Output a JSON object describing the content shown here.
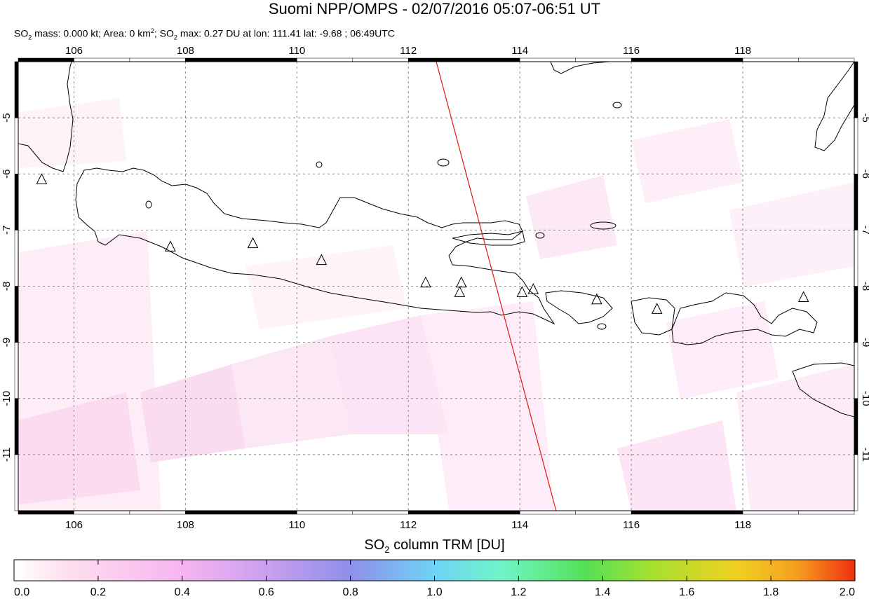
{
  "title": "Suomi NPP/OMPS - 02/07/2016 05:07-06:51 UT",
  "subtitle": {
    "part1": "SO",
    "part1_sub": "2",
    "part2": " mass: 0.000 kt; Area: 0 km",
    "part2_sup": "2",
    "part3": "; SO",
    "part3_sub": "2",
    "part4": " max: 0.27 DU at lon: 111.41 lat: -9.68 ; 06:49UTC"
  },
  "map": {
    "lon_range": [
      105.0,
      120.0
    ],
    "lat_range": [
      -12.0,
      -4.0
    ],
    "lon_ticks": [
      "106",
      "108",
      "110",
      "112",
      "114",
      "116",
      "118"
    ],
    "lat_ticks": [
      "-5",
      "-6",
      "-7",
      "-8",
      "-9",
      "-10",
      "-11"
    ],
    "lon_values": [
      106,
      108,
      110,
      112,
      114,
      116,
      118
    ],
    "lat_values": [
      -5,
      -6,
      -7,
      -8,
      -9,
      -10,
      -11
    ],
    "grid": true,
    "swath_line": {
      "color": "#e0190f",
      "start": [
        112.5,
        -4.0
      ],
      "end": [
        114.65,
        -12.0
      ]
    },
    "volcanoes": [
      [
        105.42,
        -6.1
      ],
      [
        107.73,
        -7.3
      ],
      [
        109.21,
        -7.24
      ],
      [
        110.44,
        -7.54
      ],
      [
        112.31,
        -7.94
      ],
      [
        112.95,
        -7.94
      ],
      [
        112.92,
        -8.11
      ],
      [
        114.04,
        -8.11
      ],
      [
        114.24,
        -8.06
      ],
      [
        115.38,
        -8.24
      ],
      [
        116.46,
        -8.41
      ],
      [
        119.09,
        -8.2
      ]
    ]
  },
  "colorbar": {
    "title_pre": "SO",
    "title_sub": "2",
    "title_post": " column TRM [DU]",
    "ticks": [
      "0.0",
      "0.2",
      "0.4",
      "0.6",
      "0.8",
      "1.0",
      "1.2",
      "1.4",
      "1.6",
      "1.8",
      "2.0"
    ],
    "range": [
      0.0,
      2.0
    ],
    "colors": [
      "#ffffff",
      "#fde0ee",
      "#f7b4f0",
      "#c9a0ee",
      "#8f8fea",
      "#6fd3f5",
      "#6ff5c8",
      "#55e055",
      "#a8e030",
      "#f0d020",
      "#f5a020",
      "#f03010"
    ]
  }
}
